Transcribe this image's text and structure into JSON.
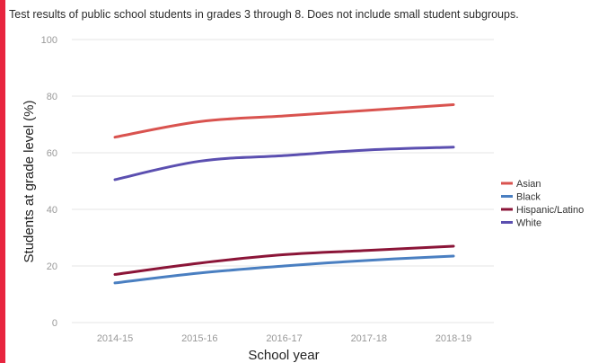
{
  "subtitle": "Test results of public school students in grades 3 through 8. Does not include small student subgroups.",
  "colors": {
    "accent_bar": "#e8253f",
    "grid": "#e6e6e6"
  },
  "chart_data": {
    "type": "line",
    "title": "",
    "xlabel": "School year",
    "ylabel": "Students at grade level (%)",
    "ylim": [
      0,
      100
    ],
    "yticks": [
      0,
      20,
      40,
      60,
      80,
      100
    ],
    "grid": true,
    "legend_position": "right",
    "categories": [
      "2014-15",
      "2015-16",
      "2016-17",
      "2017-18",
      "2018-19"
    ],
    "series": [
      {
        "name": "Asian",
        "color": "#d9534f",
        "values": [
          65.5,
          71,
          73,
          75,
          77
        ]
      },
      {
        "name": "Black",
        "color": "#4a7fc1",
        "values": [
          14,
          17.5,
          20,
          22,
          23.5
        ]
      },
      {
        "name": "Hispanic/Latino",
        "color": "#8b1538",
        "values": [
          17,
          21,
          24,
          25.5,
          27
        ]
      },
      {
        "name": "White",
        "color": "#5b4fb0",
        "values": [
          50.5,
          57,
          59,
          61,
          62
        ]
      }
    ]
  }
}
